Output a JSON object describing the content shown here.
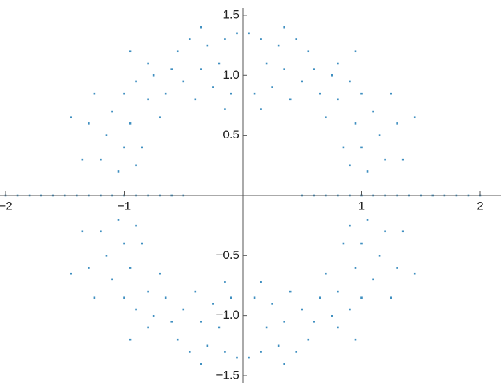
{
  "chart_data": {
    "type": "scatter",
    "color": "#3f8fc0",
    "xlim": [
      -2.047,
      2.176
    ],
    "ylim": [
      -1.61,
      1.627
    ],
    "xticks": [
      {
        "value": -2,
        "label": "−2"
      },
      {
        "value": -1,
        "label": "−1"
      },
      1,
      2
    ],
    "yticks": [
      {
        "value": -1.5,
        "label": "−1.5"
      },
      {
        "value": -1,
        "label": "−1.0"
      },
      {
        "value": -0.5,
        "label": "−0.5"
      },
      0.5,
      {
        "value": 1,
        "label": "1.0"
      },
      1.5
    ],
    "x": [
      0.05,
      0.15,
      0.3,
      0.45,
      0.55,
      0.2,
      0.35,
      0.6,
      0.75,
      0.9,
      0.1,
      0.25,
      0.4,
      0.65,
      0.8,
      1.0,
      1.1,
      0.95,
      0.85,
      1.0,
      1.15,
      1.3,
      1.45,
      1.2,
      1.05,
      0.9,
      1.35,
      0.8,
      0.95,
      0.35,
      0.15,
      0.5,
      1.25,
      0.7,
      -0.05,
      -0.15,
      -0.3,
      -0.45,
      -0.55,
      -0.2,
      -0.35,
      -0.6,
      -0.75,
      -0.9,
      -0.1,
      -0.25,
      -0.4,
      -0.65,
      -0.8,
      -1.0,
      -1.1,
      -0.95,
      -0.85,
      -1.0,
      -1.15,
      -1.3,
      -1.45,
      -1.2,
      -1.05,
      -0.9,
      -1.35,
      -0.8,
      -0.95,
      -0.35,
      -0.15,
      -0.5,
      -1.25,
      -0.7,
      -0.05,
      -0.15,
      -0.3,
      -0.45,
      -0.55,
      -0.2,
      -0.35,
      -0.6,
      -0.75,
      -0.9,
      -0.1,
      -0.25,
      -0.4,
      -0.65,
      -0.8,
      -1.0,
      -1.1,
      -0.95,
      -0.85,
      -1.0,
      -1.15,
      -1.3,
      -1.45,
      -1.2,
      -1.05,
      -0.9,
      -1.35,
      -0.8,
      -0.95,
      -0.35,
      -0.15,
      -0.5,
      -1.25,
      -0.7,
      0.05,
      0.15,
      0.3,
      0.45,
      0.55,
      0.2,
      0.35,
      0.6,
      0.75,
      0.9,
      0.1,
      0.25,
      0.4,
      0.65,
      0.8,
      1.0,
      1.1,
      0.95,
      0.85,
      1.0,
      1.15,
      1.3,
      1.45,
      1.2,
      1.05,
      0.9,
      1.35,
      0.8,
      0.95,
      0.35,
      0.15,
      0.5,
      1.25,
      0.7,
      -2,
      -1.9,
      -1.8,
      -1.7,
      -1.6,
      -1.5,
      -1.4,
      -1.3,
      -1.2,
      -1.1,
      -1,
      -0.9,
      -0.8,
      -0.7,
      -0.6,
      -0.5,
      0.5,
      0.6,
      0.7,
      0.8,
      0.9,
      1,
      1.1,
      1.2,
      1.3,
      1.4,
      1.5,
      1.6,
      1.7,
      1.8,
      1.9,
      2
    ],
    "values": [
      1.35,
      1.3,
      1.25,
      1.3,
      1.2,
      1.1,
      1.05,
      1.05,
      1.0,
      0.95,
      0.85,
      0.9,
      0.8,
      0.85,
      0.8,
      0.85,
      0.7,
      0.6,
      0.4,
      0.4,
      0.5,
      0.6,
      0.65,
      0.3,
      0.2,
      0.25,
      0.3,
      1.1,
      1.2,
      1.4,
      0.72,
      0.95,
      0.85,
      0.65,
      1.35,
      1.3,
      1.25,
      1.3,
      1.2,
      1.1,
      1.05,
      1.05,
      1.0,
      0.95,
      0.85,
      0.9,
      0.8,
      0.85,
      0.8,
      0.85,
      0.7,
      0.6,
      0.4,
      0.4,
      0.5,
      0.6,
      0.65,
      0.3,
      0.2,
      0.25,
      0.3,
      1.1,
      1.2,
      1.4,
      0.72,
      0.95,
      0.85,
      0.65,
      -1.35,
      -1.3,
      -1.25,
      -1.3,
      -1.2,
      -1.1,
      -1.05,
      -1.05,
      -1.0,
      -0.95,
      -0.85,
      -0.9,
      -0.8,
      -0.85,
      -0.8,
      -0.85,
      -0.7,
      -0.6,
      -0.4,
      -0.4,
      -0.5,
      -0.6,
      -0.65,
      -0.3,
      -0.2,
      -0.25,
      -0.3,
      -1.1,
      -1.2,
      -1.4,
      -0.72,
      -0.95,
      -0.85,
      -0.65,
      -1.35,
      -1.3,
      -1.25,
      -1.3,
      -1.2,
      -1.1,
      -1.05,
      -1.05,
      -1.0,
      -0.95,
      -0.85,
      -0.9,
      -0.8,
      -0.85,
      -0.8,
      -0.85,
      -0.7,
      -0.6,
      -0.4,
      -0.4,
      -0.5,
      -0.6,
      -0.65,
      -0.3,
      -0.2,
      -0.25,
      -0.3,
      -1.1,
      -1.2,
      -1.4,
      -0.72,
      -0.95,
      -0.85,
      -0.65,
      0,
      0,
      0,
      0,
      0,
      0,
      0,
      0,
      0,
      0,
      0,
      0,
      0,
      0,
      0,
      0,
      0,
      0,
      0,
      0,
      0,
      0,
      0,
      0,
      0,
      0,
      0,
      0,
      0,
      0,
      0,
      0
    ]
  }
}
